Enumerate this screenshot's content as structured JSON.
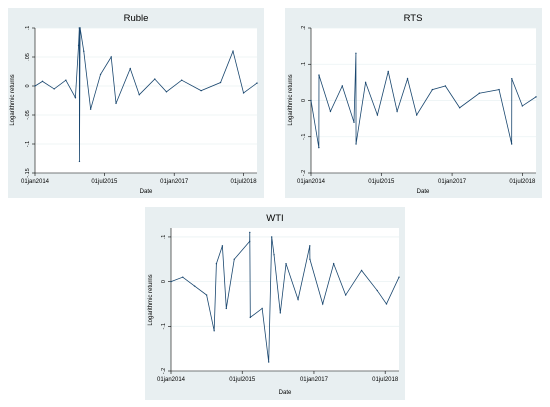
{
  "chart_data": [
    {
      "type": "line",
      "title": "Ruble",
      "xlabel": "Date",
      "ylabel": "Logarithmic returns",
      "xlim": [
        "2014-01-01",
        "2018-10-15"
      ],
      "ylim": [
        -0.15,
        0.1
      ],
      "xticks": [
        {
          "date": "2014-01-01",
          "label": "01jan2014"
        },
        {
          "date": "2015-07-01",
          "label": "01jul2015"
        },
        {
          "date": "2017-01-01",
          "label": "01jan2017"
        },
        {
          "date": "2018-07-01",
          "label": "01jul2018"
        }
      ],
      "yticks": [
        {
          "value": 0.1,
          "label": ".1"
        },
        {
          "value": 0.05,
          "label": ".05"
        },
        {
          "value": 0,
          "label": "0"
        },
        {
          "value": -0.05,
          "label": "-.05"
        },
        {
          "value": -0.1,
          "label": "-.1"
        },
        {
          "value": -0.15,
          "label": "-.15"
        }
      ],
      "grid": true,
      "color": "#1a476f",
      "series": [
        {
          "x": [
            "2014-01-01",
            "2014-03-01",
            "2014-06-01",
            "2014-09-01",
            "2014-11-15",
            "2014-12-10",
            "2014-12-16",
            "2014-12-17",
            "2014-12-22",
            "2015-01-20",
            "2015-03-15",
            "2015-06-01",
            "2015-08-24",
            "2015-10-01",
            "2016-01-21",
            "2016-04-01",
            "2016-08-01",
            "2016-11-01",
            "2017-03-01",
            "2017-08-01",
            "2018-01-01",
            "2018-04-09",
            "2018-07-01",
            "2018-10-15"
          ],
          "y": [
            0.0,
            0.008,
            -0.005,
            0.01,
            -0.02,
            0.07,
            0.1,
            -0.13,
            0.1,
            0.06,
            -0.04,
            0.02,
            0.05,
            -0.03,
            0.03,
            -0.015,
            0.012,
            -0.01,
            0.01,
            -0.008,
            0.006,
            0.06,
            -0.012,
            0.005
          ]
        }
      ]
    },
    {
      "type": "line",
      "title": "RTS",
      "xlabel": "Date",
      "ylabel": "Logarithmic returns",
      "xlim": [
        "2014-01-01",
        "2018-10-15"
      ],
      "ylim": [
        -0.2,
        0.2
      ],
      "xticks": [
        {
          "date": "2014-01-01",
          "label": "01jan2014"
        },
        {
          "date": "2015-07-01",
          "label": "01jul2015"
        },
        {
          "date": "2017-01-01",
          "label": "01jan2017"
        },
        {
          "date": "2018-07-01",
          "label": "01jul2018"
        }
      ],
      "yticks": [
        {
          "value": 0.2,
          "label": ".2"
        },
        {
          "value": 0.1,
          "label": ".1"
        },
        {
          "value": 0,
          "label": "0"
        },
        {
          "value": -0.1,
          "label": "-.1"
        },
        {
          "value": -0.2,
          "label": "-.2"
        }
      ],
      "grid": true,
      "color": "#1a476f",
      "series": [
        {
          "x": [
            "2014-01-01",
            "2014-03-03",
            "2014-03-04",
            "2014-06-01",
            "2014-09-01",
            "2014-12-01",
            "2014-12-16",
            "2014-12-17",
            "2015-03-01",
            "2015-06-01",
            "2015-08-24",
            "2015-11-01",
            "2016-01-21",
            "2016-04-01",
            "2016-08-01",
            "2016-11-10",
            "2017-03-01",
            "2017-08-01",
            "2018-01-01",
            "2018-04-09",
            "2018-04-10",
            "2018-07-01",
            "2018-10-15"
          ],
          "y": [
            0.0,
            -0.13,
            0.07,
            -0.03,
            0.04,
            -0.06,
            0.13,
            -0.12,
            0.05,
            -0.04,
            0.08,
            -0.03,
            0.06,
            -0.04,
            0.03,
            0.04,
            -0.02,
            0.02,
            0.03,
            -0.12,
            0.06,
            -0.015,
            0.01
          ]
        }
      ]
    },
    {
      "type": "line",
      "title": "WTI",
      "xlabel": "Date",
      "ylabel": "Logarithmic returns",
      "xlim": [
        "2014-01-01",
        "2018-10-15"
      ],
      "ylim": [
        -0.2,
        0.12
      ],
      "xticks": [
        {
          "date": "2014-01-01",
          "label": "01jan2014"
        },
        {
          "date": "2015-07-01",
          "label": "01jul2015"
        },
        {
          "date": "2017-01-01",
          "label": "01jan2017"
        },
        {
          "date": "2018-07-01",
          "label": "01jul2018"
        }
      ],
      "yticks": [
        {
          "value": 0.1,
          "label": ".1"
        },
        {
          "value": 0,
          "label": "0"
        },
        {
          "value": -0.1,
          "label": "-.1"
        },
        {
          "value": -0.2,
          "label": "-.2"
        }
      ],
      "grid": true,
      "color": "#1a476f",
      "series": [
        {
          "x": [
            "2014-01-01",
            "2014-04-01",
            "2014-07-01",
            "2014-10-01",
            "2014-11-28",
            "2014-12-15",
            "2015-01-30",
            "2015-03-01",
            "2015-05-01",
            "2015-08-27",
            "2015-08-28",
            "2015-09-01",
            "2015-12-01",
            "2016-01-20",
            "2016-02-12",
            "2016-03-01",
            "2016-04-18",
            "2016-06-01",
            "2016-09-01",
            "2016-11-30",
            "2016-12-01",
            "2017-03-09",
            "2017-06-01",
            "2017-09-01",
            "2018-01-01",
            "2018-05-01",
            "2018-07-11",
            "2018-10-15"
          ],
          "y": [
            0.0,
            0.01,
            -0.01,
            -0.03,
            -0.11,
            0.04,
            0.08,
            -0.06,
            0.05,
            0.09,
            0.11,
            -0.08,
            -0.06,
            -0.18,
            0.1,
            0.06,
            -0.07,
            0.04,
            -0.04,
            0.08,
            0.05,
            -0.05,
            0.04,
            -0.03,
            0.025,
            -0.02,
            -0.05,
            0.01
          ]
        }
      ]
    }
  ]
}
